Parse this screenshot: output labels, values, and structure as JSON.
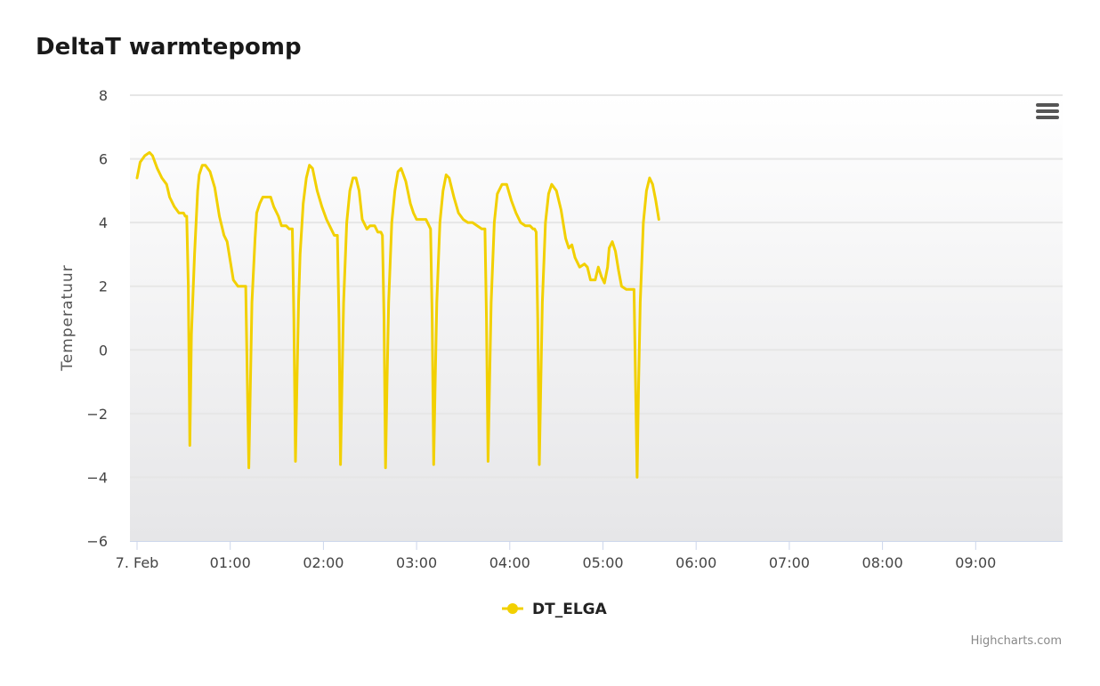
{
  "chart_data": {
    "type": "line",
    "title": "DeltaT warmtepomp",
    "ylabel": "Temperatuur",
    "xlabel": "",
    "ylim": [
      -6,
      8
    ],
    "yticks": [
      "8",
      "6",
      "4",
      "2",
      "0",
      "−2",
      "−4",
      "−6"
    ],
    "yticks_values": [
      8,
      6,
      4,
      2,
      0,
      -2,
      -4,
      -6
    ],
    "xlim": [
      "00:00",
      "09:52"
    ],
    "xticks": [
      {
        "label": "7. Feb",
        "time": "00:00"
      },
      {
        "label": "01:00",
        "time": "01:00"
      },
      {
        "label": "02:00",
        "time": "02:00"
      },
      {
        "label": "03:00",
        "time": "03:00"
      },
      {
        "label": "04:00",
        "time": "04:00"
      },
      {
        "label": "05:00",
        "time": "05:00"
      },
      {
        "label": "06:00",
        "time": "06:00"
      },
      {
        "label": "07:00",
        "time": "07:00"
      },
      {
        "label": "08:00",
        "time": "08:00"
      },
      {
        "label": "09:00",
        "time": "09:00"
      }
    ],
    "grid": true,
    "legend_position": "bottom-center",
    "series": [
      {
        "name": "DT_ELGA",
        "color": "#f2d000",
        "points": [
          [
            "00:00",
            5.4
          ],
          [
            "00:02",
            5.9
          ],
          [
            "00:05",
            6.1
          ],
          [
            "00:08",
            6.2
          ],
          [
            "00:10",
            6.1
          ],
          [
            "00:13",
            5.7
          ],
          [
            "00:16",
            5.4
          ],
          [
            "00:19",
            5.2
          ],
          [
            "00:21",
            4.8
          ],
          [
            "00:24",
            4.5
          ],
          [
            "00:27",
            4.3
          ],
          [
            "00:30",
            4.3
          ],
          [
            "00:31",
            4.2
          ],
          [
            "00:32",
            4.2
          ],
          [
            "00:33",
            2.0
          ],
          [
            "00:34",
            -3.0
          ],
          [
            "00:35",
            0.5
          ],
          [
            "00:37",
            3.0
          ],
          [
            "00:39",
            5.0
          ],
          [
            "00:40",
            5.5
          ],
          [
            "00:42",
            5.8
          ],
          [
            "00:44",
            5.8
          ],
          [
            "00:47",
            5.6
          ],
          [
            "00:50",
            5.1
          ],
          [
            "00:53",
            4.2
          ],
          [
            "00:56",
            3.6
          ],
          [
            "00:58",
            3.4
          ],
          [
            "01:00",
            2.8
          ],
          [
            "01:02",
            2.2
          ],
          [
            "01:05",
            2.0
          ],
          [
            "01:08",
            2.0
          ],
          [
            "01:10",
            2.0
          ],
          [
            "01:11",
            -1.0
          ],
          [
            "01:12",
            -3.7
          ],
          [
            "01:13",
            -1.0
          ],
          [
            "01:14",
            1.5
          ],
          [
            "01:16",
            3.5
          ],
          [
            "01:17",
            4.3
          ],
          [
            "01:19",
            4.6
          ],
          [
            "01:21",
            4.8
          ],
          [
            "01:24",
            4.8
          ],
          [
            "01:26",
            4.8
          ],
          [
            "01:28",
            4.5
          ],
          [
            "01:31",
            4.2
          ],
          [
            "01:33",
            3.9
          ],
          [
            "01:36",
            3.9
          ],
          [
            "01:38",
            3.8
          ],
          [
            "01:40",
            3.8
          ],
          [
            "01:41",
            1.0
          ],
          [
            "01:42",
            -3.5
          ],
          [
            "01:43",
            -1.0
          ],
          [
            "01:44",
            1.5
          ],
          [
            "01:45",
            3.0
          ],
          [
            "01:47",
            4.6
          ],
          [
            "01:49",
            5.4
          ],
          [
            "01:51",
            5.8
          ],
          [
            "01:53",
            5.7
          ],
          [
            "01:56",
            5.0
          ],
          [
            "01:59",
            4.5
          ],
          [
            "02:02",
            4.1
          ],
          [
            "02:05",
            3.8
          ],
          [
            "02:07",
            3.6
          ],
          [
            "02:09",
            3.6
          ],
          [
            "02:10",
            1.0
          ],
          [
            "02:11",
            -3.6
          ],
          [
            "02:12",
            -1.0
          ],
          [
            "02:13",
            1.5
          ],
          [
            "02:15",
            4.0
          ],
          [
            "02:17",
            5.0
          ],
          [
            "02:19",
            5.4
          ],
          [
            "02:21",
            5.4
          ],
          [
            "02:23",
            5.0
          ],
          [
            "02:25",
            4.1
          ],
          [
            "02:28",
            3.8
          ],
          [
            "02:30",
            3.9
          ],
          [
            "02:33",
            3.9
          ],
          [
            "02:35",
            3.7
          ],
          [
            "02:37",
            3.7
          ],
          [
            "02:38",
            3.6
          ],
          [
            "02:39",
            1.0
          ],
          [
            "02:40",
            -3.7
          ],
          [
            "02:41",
            -1.0
          ],
          [
            "02:42",
            1.5
          ],
          [
            "02:44",
            4.0
          ],
          [
            "02:46",
            5.0
          ],
          [
            "02:48",
            5.6
          ],
          [
            "02:50",
            5.7
          ],
          [
            "02:53",
            5.3
          ],
          [
            "02:56",
            4.6
          ],
          [
            "02:58",
            4.3
          ],
          [
            "03:00",
            4.1
          ],
          [
            "03:03",
            4.1
          ],
          [
            "03:06",
            4.1
          ],
          [
            "03:08",
            3.9
          ],
          [
            "03:09",
            3.8
          ],
          [
            "03:10",
            1.0
          ],
          [
            "03:11",
            -3.6
          ],
          [
            "03:12",
            -1.0
          ],
          [
            "03:13",
            1.5
          ],
          [
            "03:15",
            4.0
          ],
          [
            "03:17",
            5.0
          ],
          [
            "03:19",
            5.5
          ],
          [
            "03:21",
            5.4
          ],
          [
            "03:24",
            4.8
          ],
          [
            "03:27",
            4.3
          ],
          [
            "03:30",
            4.1
          ],
          [
            "03:33",
            4.0
          ],
          [
            "03:36",
            4.0
          ],
          [
            "03:39",
            3.9
          ],
          [
            "03:42",
            3.8
          ],
          [
            "03:44",
            3.8
          ],
          [
            "03:45",
            1.0
          ],
          [
            "03:46",
            -3.5
          ],
          [
            "03:47",
            -1.0
          ],
          [
            "03:48",
            1.5
          ],
          [
            "03:50",
            4.0
          ],
          [
            "03:52",
            4.9
          ],
          [
            "03:55",
            5.2
          ],
          [
            "03:58",
            5.2
          ],
          [
            "04:01",
            4.7
          ],
          [
            "04:04",
            4.3
          ],
          [
            "04:07",
            4.0
          ],
          [
            "04:10",
            3.9
          ],
          [
            "04:13",
            3.9
          ],
          [
            "04:15",
            3.8
          ],
          [
            "04:16",
            3.8
          ],
          [
            "04:17",
            3.7
          ],
          [
            "04:18",
            1.0
          ],
          [
            "04:19",
            -3.6
          ],
          [
            "04:20",
            -1.0
          ],
          [
            "04:21",
            1.5
          ],
          [
            "04:23",
            4.0
          ],
          [
            "04:25",
            4.9
          ],
          [
            "04:27",
            5.2
          ],
          [
            "04:30",
            5.0
          ],
          [
            "04:33",
            4.4
          ],
          [
            "04:36",
            3.5
          ],
          [
            "04:38",
            3.2
          ],
          [
            "04:40",
            3.3
          ],
          [
            "04:42",
            2.9
          ],
          [
            "04:45",
            2.6
          ],
          [
            "04:48",
            2.7
          ],
          [
            "04:50",
            2.6
          ],
          [
            "04:52",
            2.2
          ],
          [
            "04:55",
            2.2
          ],
          [
            "04:57",
            2.6
          ],
          [
            "04:59",
            2.3
          ],
          [
            "05:01",
            2.1
          ],
          [
            "05:03",
            2.6
          ],
          [
            "05:04",
            3.2
          ],
          [
            "05:06",
            3.4
          ],
          [
            "05:08",
            3.1
          ],
          [
            "05:10",
            2.5
          ],
          [
            "05:12",
            2.0
          ],
          [
            "05:15",
            1.9
          ],
          [
            "05:18",
            1.9
          ],
          [
            "05:20",
            1.9
          ],
          [
            "05:21",
            -1.0
          ],
          [
            "05:22",
            -4.0
          ],
          [
            "05:23",
            -1.0
          ],
          [
            "05:24",
            1.5
          ],
          [
            "05:26",
            4.0
          ],
          [
            "05:28",
            5.0
          ],
          [
            "05:30",
            5.4
          ],
          [
            "05:32",
            5.2
          ],
          [
            "05:34",
            4.7
          ],
          [
            "05:36",
            4.1
          ]
        ]
      }
    ],
    "credits": "Highcharts.com",
    "menu_icon": "hamburger-menu-icon"
  }
}
